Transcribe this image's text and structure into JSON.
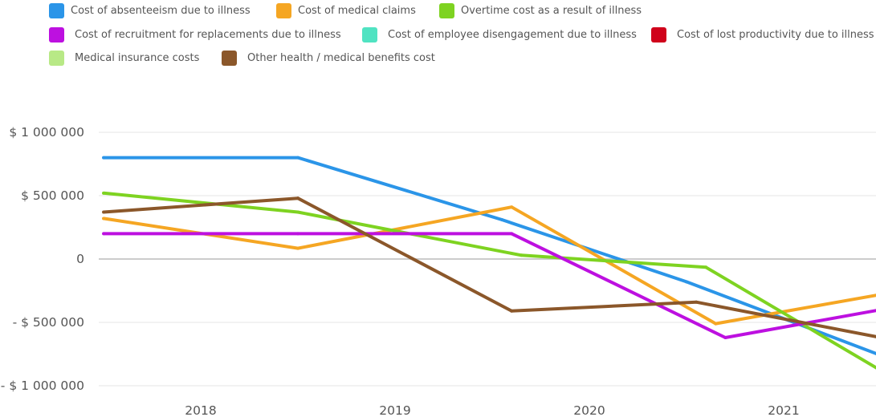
{
  "chart_data": {
    "type": "line",
    "title": "",
    "xlabel": "",
    "ylabel": "",
    "ylim": [
      -1000000,
      1000000
    ],
    "grid": true,
    "legend_position": "top",
    "y_ticks": [
      {
        "value": 1000000,
        "label": "$ 1 000 000"
      },
      {
        "value": 500000,
        "label": "$ 500 000"
      },
      {
        "value": 0,
        "label": "0"
      },
      {
        "value": -500000,
        "label": "- $ 500 000"
      },
      {
        "value": -1000000,
        "label": "- $ 1 000 000"
      }
    ],
    "x_ticks": [
      {
        "value": 2018,
        "label": "2018"
      },
      {
        "value": 2019,
        "label": "2019"
      },
      {
        "value": 2020,
        "label": "2020"
      },
      {
        "value": 2021,
        "label": "2021"
      }
    ],
    "series": [
      {
        "name": "Cost of absenteeism due to illness",
        "color": "#2b95e8",
        "x": [
          2017.5,
          2018.5,
          2019.55,
          2020.5,
          2021.5
        ],
        "y": [
          800000,
          800000,
          310000,
          -180000,
          -760000
        ]
      },
      {
        "name": "Cost of medical claims",
        "color": "#f5a623",
        "x": [
          2017.5,
          2018.5,
          2019.6,
          2020.65,
          2021.5
        ],
        "y": [
          320000,
          85000,
          410000,
          -510000,
          -280000
        ]
      },
      {
        "name": "Overtime cost as a result of illness",
        "color": "#7ed321",
        "x": [
          2017.5,
          2018.5,
          2019.65,
          2020.6,
          2021.5
        ],
        "y": [
          520000,
          370000,
          30000,
          -65000,
          -880000
        ]
      },
      {
        "name": "Cost of recruitment for replacements due to illness",
        "color": "#bd10e0",
        "x": [
          2017.5,
          2018.5,
          2019.6,
          2020.7,
          2021.5
        ],
        "y": [
          200000,
          200000,
          200000,
          -620000,
          -400000
        ]
      },
      {
        "name": "Cost of employee disengagement due to illness",
        "color": "#50e3c2",
        "x": [],
        "y": []
      },
      {
        "name": "Cost of lost productivity due to illness",
        "color": "#d0021b",
        "x": [],
        "y": []
      },
      {
        "name": "Medical insurance costs",
        "color": "#b8e986",
        "x": [],
        "y": []
      },
      {
        "name": "Other health / medical benefits cost",
        "color": "#8b572a",
        "x": [
          2017.5,
          2018.5,
          2019.6,
          2020.55,
          2021.5
        ],
        "y": [
          370000,
          480000,
          -410000,
          -340000,
          -620000
        ]
      }
    ]
  }
}
